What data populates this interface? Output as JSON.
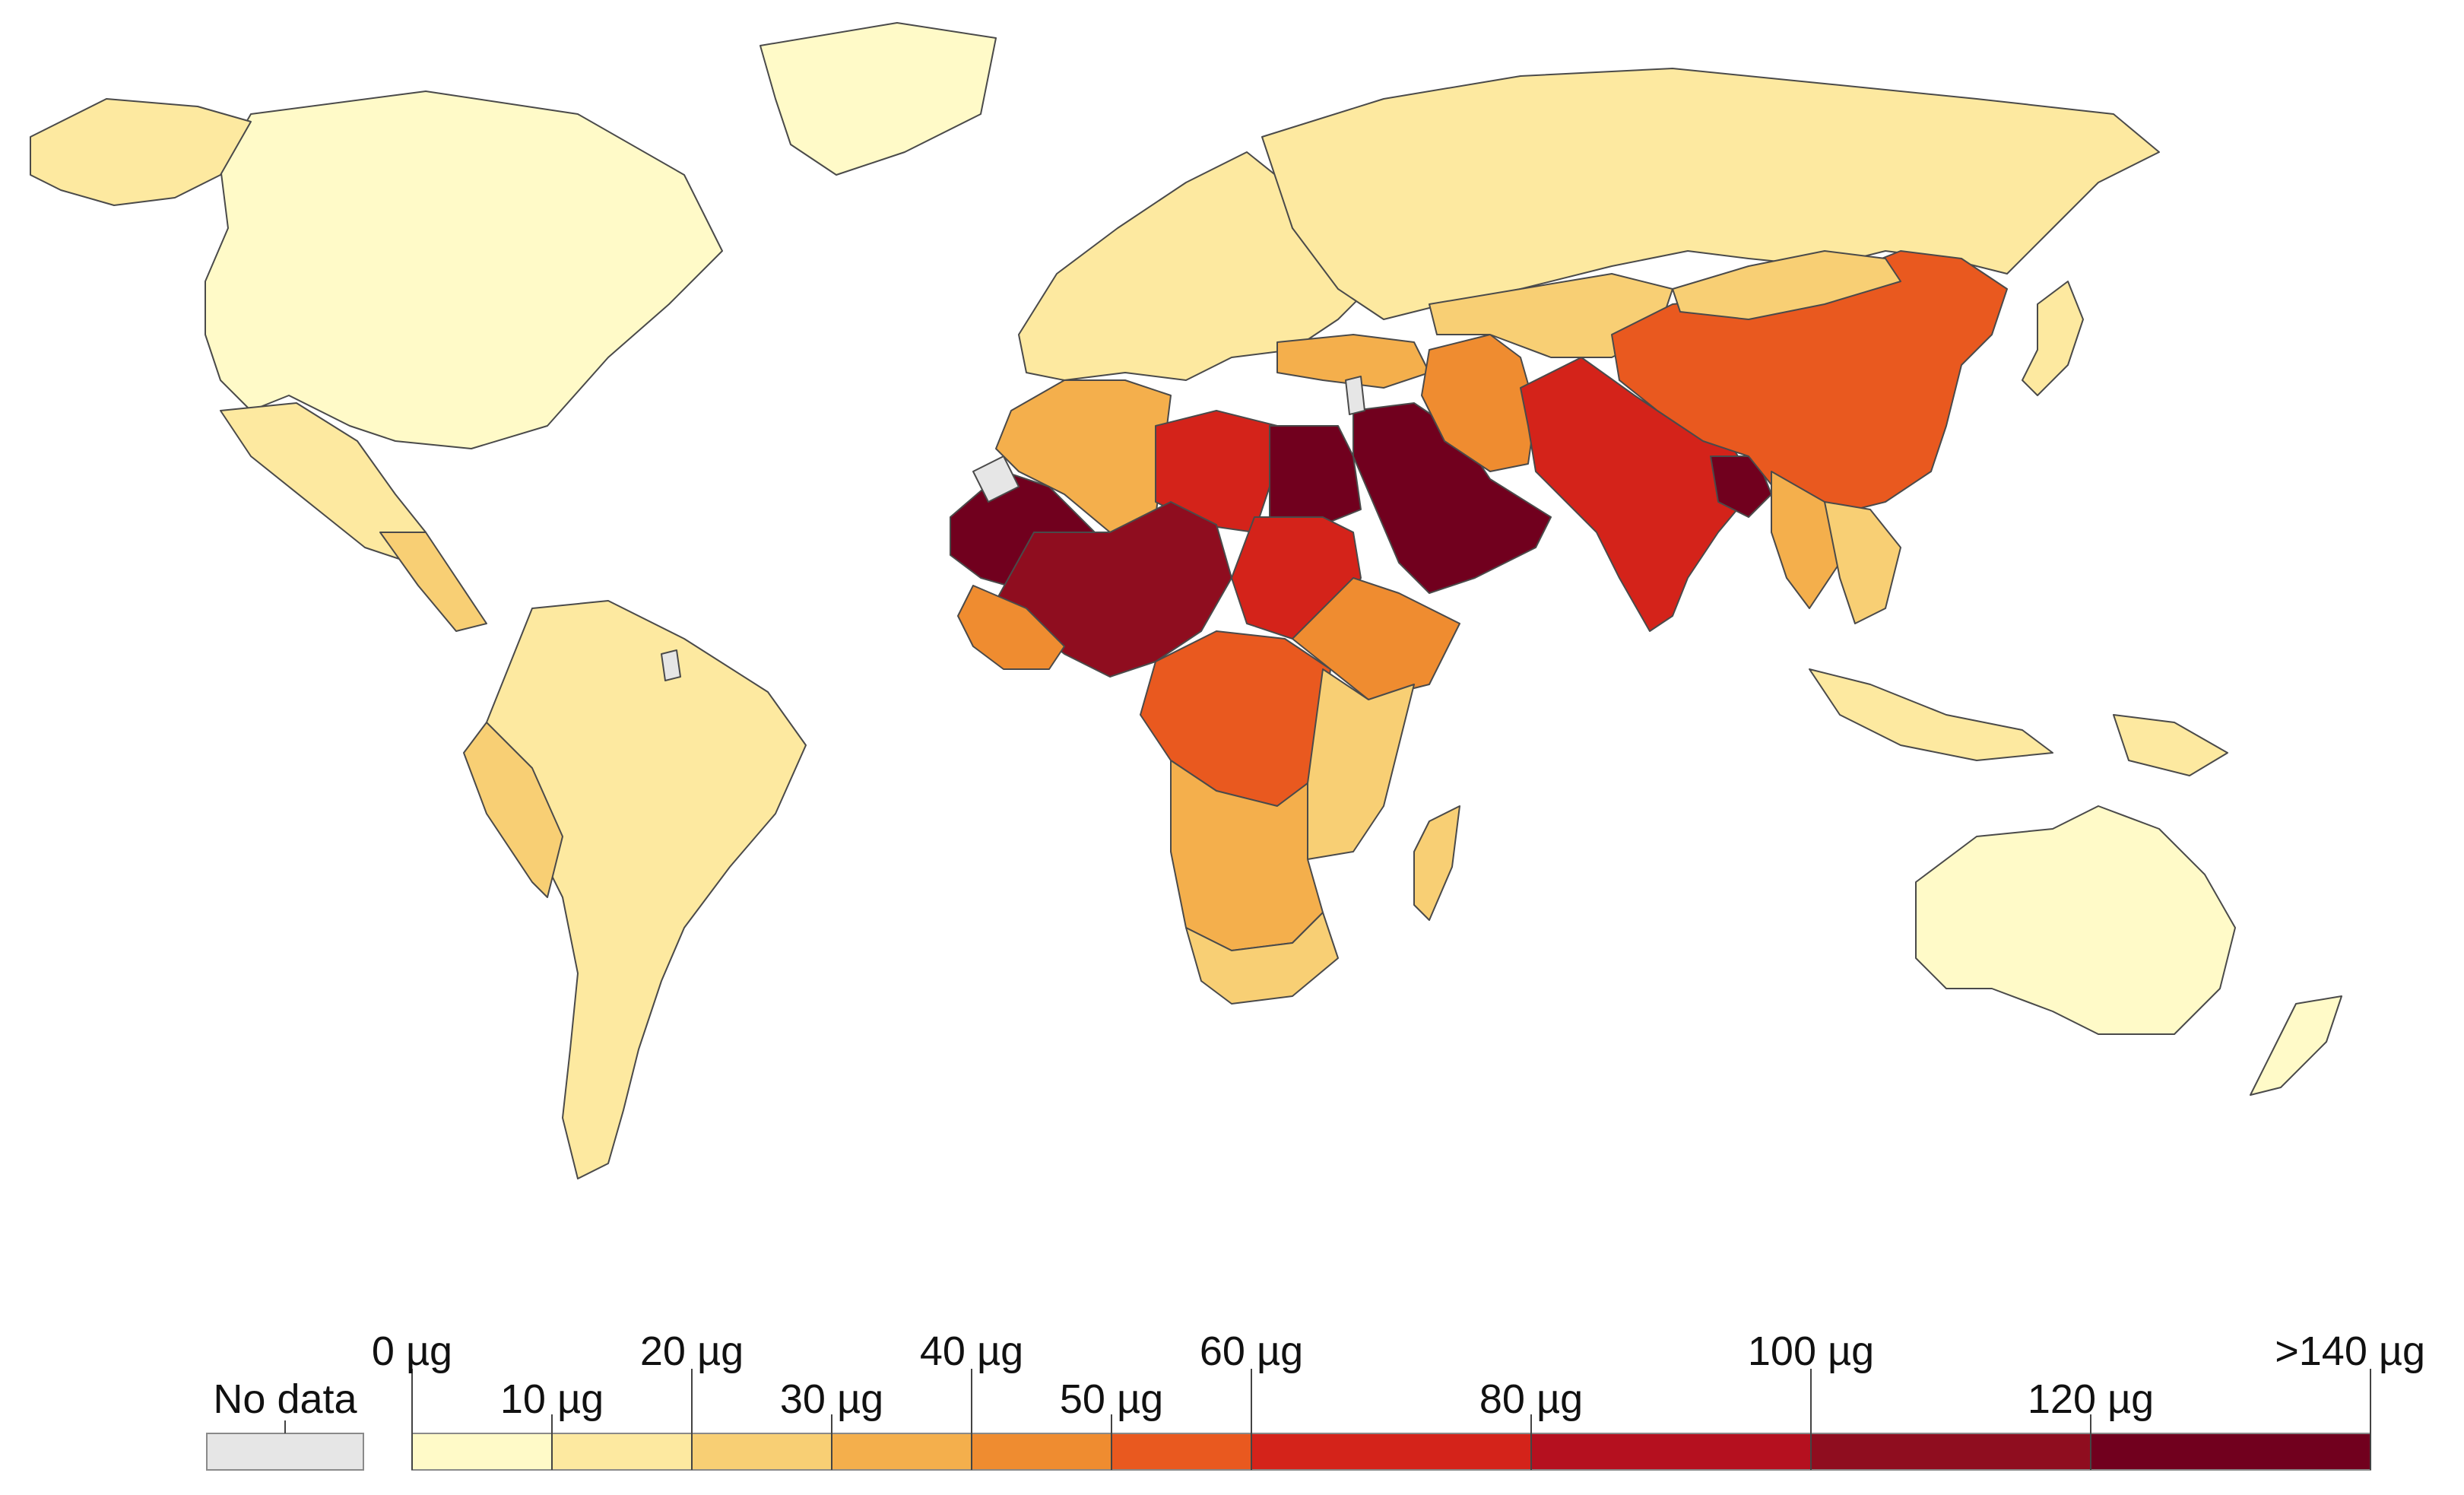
{
  "map": {
    "variable": "µg",
    "colors": {
      "no_data": "#e6e6e6",
      "b0_10": "#fffac8",
      "b10_20": "#fde9a0",
      "b20_30": "#f8cf74",
      "b30_40": "#f4af4c",
      "b40_50": "#ef8c30",
      "b50_60": "#e9591f",
      "b60_80": "#d4231a",
      "b80_100": "#b5101f",
      "b100_120": "#8f0d1f",
      "b120_140": "#71001e"
    },
    "regions": [
      {
        "id": "north-america",
        "bin": "b0_10"
      },
      {
        "id": "greenland",
        "bin": "b0_10"
      },
      {
        "id": "alaska",
        "bin": "b10_20"
      },
      {
        "id": "mexico",
        "bin": "b10_20"
      },
      {
        "id": "central-america",
        "bin": "b20_30"
      },
      {
        "id": "south-america",
        "bin": "b10_20"
      },
      {
        "id": "south-america-west",
        "bin": "b20_30"
      },
      {
        "id": "europe",
        "bin": "b10_20"
      },
      {
        "id": "russia",
        "bin": "b10_20"
      },
      {
        "id": "north-africa-west",
        "bin": "b30_40"
      },
      {
        "id": "sahel-west",
        "bin": "b120_140"
      },
      {
        "id": "libya",
        "bin": "b60_80"
      },
      {
        "id": "egypt",
        "bin": "b120_140"
      },
      {
        "id": "sahel-central",
        "bin": "b100_120"
      },
      {
        "id": "sudan",
        "bin": "b60_80"
      },
      {
        "id": "west-africa-coast",
        "bin": "b40_50"
      },
      {
        "id": "central-africa",
        "bin": "b50_60"
      },
      {
        "id": "horn-of-africa",
        "bin": "b40_50"
      },
      {
        "id": "east-africa",
        "bin": "b20_30"
      },
      {
        "id": "southern-africa",
        "bin": "b30_40"
      },
      {
        "id": "south-africa",
        "bin": "b20_30"
      },
      {
        "id": "madagascar",
        "bin": "b20_30"
      },
      {
        "id": "turkey",
        "bin": "b30_40"
      },
      {
        "id": "arabian-peninsula",
        "bin": "b120_140"
      },
      {
        "id": "iran",
        "bin": "b40_50"
      },
      {
        "id": "central-asia",
        "bin": "b20_30"
      },
      {
        "id": "pakistan-india",
        "bin": "b60_80"
      },
      {
        "id": "bangladesh",
        "bin": "b120_140"
      },
      {
        "id": "china",
        "bin": "b50_60"
      },
      {
        "id": "mongolia",
        "bin": "b20_30"
      },
      {
        "id": "southeast-asia",
        "bin": "b30_40"
      },
      {
        "id": "indochina",
        "bin": "b20_30"
      },
      {
        "id": "japan",
        "bin": "b10_20"
      },
      {
        "id": "indonesia",
        "bin": "b10_20"
      },
      {
        "id": "png",
        "bin": "b10_20"
      },
      {
        "id": "australia",
        "bin": "b0_10"
      },
      {
        "id": "new-zealand",
        "bin": "b0_10"
      },
      {
        "id": "western-sahara",
        "bin": "no_data"
      },
      {
        "id": "israel",
        "bin": "no_data"
      },
      {
        "id": "french-guiana",
        "bin": "no_data"
      }
    ]
  },
  "legend": {
    "no_data_label": "No data",
    "labels_top": [
      "0 µg",
      "20 µg",
      "40 µg",
      "60 µg",
      "100 µg",
      ">140 µg"
    ],
    "labels_bottom": [
      "10 µg",
      "30 µg",
      "50 µg",
      "80 µg",
      "120 µg"
    ],
    "bins": [
      "b0_10",
      "b10_20",
      "b20_30",
      "b30_40",
      "b40_50",
      "b50_60",
      "b60_80",
      "b80_100",
      "b100_120",
      "b120_140"
    ]
  }
}
